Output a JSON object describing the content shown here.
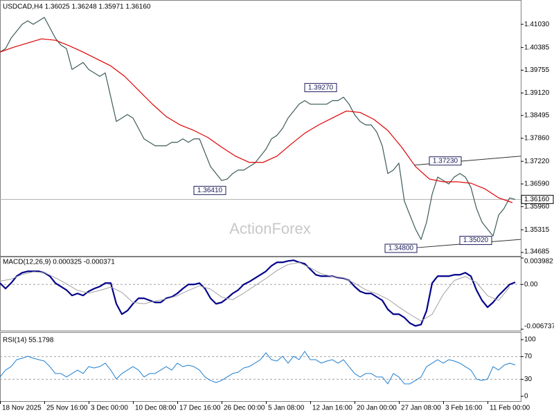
{
  "chart_data": [
    {
      "type": "line",
      "title": "USDCAD,H4  1.36025 1.36248 1.35971 1.36160",
      "watermark": "ActionForex",
      "xlim": [
        0,
        94
      ],
      "ylim": [
        1.34608,
        1.41706
      ],
      "grid": false,
      "yticks": [
        {
          "value": 1.4103,
          "label": "1.41030"
        },
        {
          "value": 1.40385,
          "label": "1.40385"
        },
        {
          "value": 1.39755,
          "label": "1.39755"
        },
        {
          "value": 1.3912,
          "label": "1.39120"
        },
        {
          "value": 1.38495,
          "label": "1.38495"
        },
        {
          "value": 1.3786,
          "label": "1.37860"
        },
        {
          "value": 1.3722,
          "label": "1.37220"
        },
        {
          "value": 1.3659,
          "label": "1.36590"
        },
        {
          "value": 1.3596,
          "label": "1.35960"
        },
        {
          "value": 1.35315,
          "label": "1.35315"
        },
        {
          "value": 1.34685,
          "label": "1.34685"
        }
      ],
      "series": [
        {
          "color": "#3c5a5a",
          "values": [
            1.40258,
            1.40355,
            1.40644,
            1.40837,
            1.4103,
            1.41127,
            1.4103,
            1.41127,
            1.41223,
            1.40934,
            1.40644,
            1.40451,
            1.40355,
            1.39775,
            1.39872,
            1.39969,
            1.39775,
            1.39679,
            1.39582,
            1.39679,
            1.39003,
            1.38328,
            1.38424,
            1.38521,
            1.38424,
            1.38135,
            1.37845,
            1.37748,
            1.37652,
            1.37652,
            1.37652,
            1.37748,
            1.37748,
            1.37845,
            1.37748,
            1.37845,
            1.37845,
            1.37459,
            1.37073,
            1.3688,
            1.36687,
            1.36725,
            1.3688,
            1.36976,
            1.36976,
            1.37073,
            1.37169,
            1.37362,
            1.37555,
            1.37845,
            1.37942,
            1.38135,
            1.38424,
            1.38617,
            1.3881,
            1.38907,
            1.3881,
            1.3881,
            1.3881,
            1.3881,
            1.38907,
            1.38907,
            1.39003,
            1.3881,
            1.38521,
            1.38328,
            1.38231,
            1.38231,
            1.38038,
            1.37652,
            1.3688,
            1.36976,
            1.37169,
            1.36108,
            1.35721,
            1.35335,
            1.35046,
            1.35528,
            1.36301,
            1.36783,
            1.36687,
            1.3659,
            1.36783,
            1.3688,
            1.36783,
            1.36494,
            1.35914,
            1.35528,
            1.35335,
            1.35142,
            1.35721,
            1.35914,
            1.36204,
            1.3616
          ]
        },
        {
          "color": "#e00000",
          "x": [
            0,
            2.5,
            5,
            7.5,
            10,
            12.5,
            15,
            17.5,
            20,
            22.5,
            25,
            27.5,
            30,
            32.5,
            35,
            37.5,
            40,
            42.5,
            45,
            47.5,
            50,
            52.5,
            55,
            57.5,
            60,
            62.5,
            65,
            67.5,
            70,
            72.5,
            75,
            77.5,
            80,
            82.5,
            85,
            87.5,
            90,
            92.5
          ],
          "values": [
            1.40258,
            1.40394,
            1.40509,
            1.40625,
            1.40587,
            1.40432,
            1.40258,
            1.40065,
            1.39872,
            1.39583,
            1.39197,
            1.38811,
            1.38464,
            1.38232,
            1.38078,
            1.37885,
            1.37614,
            1.37364,
            1.3719,
            1.3719,
            1.37364,
            1.37692,
            1.38,
            1.38232,
            1.38425,
            1.38618,
            1.38579,
            1.38386,
            1.38078,
            1.37614,
            1.37074,
            1.36727,
            1.3665,
            1.3665,
            1.36611,
            1.36456,
            1.36205,
            1.3607
          ]
        }
      ],
      "annotations": [
        {
          "x": 61,
          "value": 1.3927,
          "label": "1.39270"
        },
        {
          "x": 41,
          "value": 1.3641,
          "label": "1.36410"
        },
        {
          "x": 75.5,
          "value": 1.348,
          "label": "1.34800"
        },
        {
          "x": 89,
          "value": 1.3502,
          "label": "1.35020"
        },
        {
          "x": 83.5,
          "value": 1.3723,
          "label": "1.37230"
        }
      ],
      "trendlines": [
        {
          "x": [
            74.75,
            94
          ],
          "values": [
            1.37113,
            1.37364
          ]
        },
        {
          "x": [
            75,
            94
          ],
          "values": [
            1.34816,
            1.35048
          ]
        }
      ],
      "last_price": {
        "value": 1.3616,
        "label": "1.36160"
      }
    },
    {
      "type": "line",
      "title": "MACD(12,26,9) 0.000325 -0.000371",
      "xlim": [
        0,
        94
      ],
      "ylim": [
        -0.006737,
        0.003982
      ],
      "grid": true,
      "yticks": [
        0.003982,
        {
          "value": 0,
          "label": "0.00"
        },
        -0.006737
      ],
      "series": [
        {
          "color": "#00008b",
          "line_width": 2.2,
          "values": [
            0.000208,
            -0.000624,
            0.000208,
            0.001248,
            0.001768,
            0.001976,
            0.001976,
            0.001976,
            0.001768,
            0.001248,
            0.000208,
            -0.000312,
            -0.000832,
            -0.001664,
            -0.001352,
            -0.001664,
            -0.00104,
            -0.000624,
            -0.000312,
            0.000208,
            0.000208,
            -0.002912,
            -0.004472,
            -0.003952,
            -0.002912,
            -0.00208,
            -0.00208,
            -0.002392,
            -0.002704,
            -0.002704,
            -0.00208,
            -0.001872,
            -0.001352,
            -0.000624,
            0,
            0,
            0.000208,
            -0.000624,
            -0.00208,
            -0.002912,
            -0.002704,
            -0.00208,
            -0.001352,
            -0.000832,
            0,
            0.000416,
            0.000936,
            0.001456,
            0.001976,
            0.002808,
            0.003328,
            0.003328,
            0.003536,
            0.00364,
            0.003328,
            0.00312,
            0.002288,
            0.001456,
            0.001248,
            0.001248,
            0.001248,
            0.00104,
            0.000936,
            0.000624,
            -0.000312,
            -0.00104,
            -0.001352,
            -0.001352,
            -0.001872,
            -0.002392,
            -0.003744,
            -0.004472,
            -0.004472,
            -0.004992,
            -0.005824,
            -0.00624,
            -0.006032,
            -0.003952,
            0.000208,
            0.001248,
            0.001248,
            0.001248,
            0.001456,
            0.001456,
            0.001768,
            0.001248,
            -0.000832,
            -0.002392,
            -0.003432,
            -0.002704,
            -0.001664,
            -0.000832,
            0,
            0.000325
          ]
        },
        {
          "color": "#a0a0a0",
          "line_width": 1,
          "x": [
            0,
            2,
            4,
            6,
            8,
            10,
            12,
            14,
            16,
            18,
            20,
            22,
            24,
            26,
            28,
            30,
            32,
            34,
            36,
            38,
            40,
            42,
            44,
            46,
            48,
            50,
            52,
            54,
            56,
            58,
            60,
            62,
            64,
            66,
            68,
            70,
            72,
            74,
            76,
            78,
            80,
            82,
            84,
            86,
            88,
            90,
            92
          ],
          "values": [
            0.0005,
            0.0008,
            0.0015,
            0.0019,
            0.0018,
            0.001,
            0.0001,
            -0.0009,
            -0.0013,
            -0.0009,
            -0.0004,
            -0.0012,
            -0.0027,
            -0.0029,
            -0.0025,
            -0.0022,
            -0.0017,
            -0.0009,
            -0.0002,
            -0.0007,
            -0.0019,
            -0.0023,
            -0.0013,
            -0.0002,
            0.0009,
            0.0021,
            0.003,
            0.0033,
            0.0025,
            0.0016,
            0.0012,
            0.001,
            0.0002,
            -0.0008,
            -0.0014,
            -0.0022,
            -0.0034,
            -0.0045,
            -0.0055,
            -0.0045,
            -0.0015,
            0.0006,
            0.0012,
            0.0003,
            -0.0017,
            -0.0024,
            -0.000371
          ]
        }
      ]
    },
    {
      "type": "line",
      "title": "RSI(14) 55.1798",
      "xlim": [
        0,
        94
      ],
      "ylim": [
        0,
        100
      ],
      "grid": true,
      "yticks": [
        100,
        70,
        30,
        0
      ],
      "xticks": [
        {
          "value": 0,
          "label": "18 Nov 2025"
        },
        {
          "value": 8,
          "label": "25 Nov 16:00"
        },
        {
          "value": 16,
          "label": "3 Dec 00:00"
        },
        {
          "value": 24,
          "label": "10 Dec 08:00"
        },
        {
          "value": 32,
          "label": "17 Dec 16:00"
        },
        {
          "value": 40,
          "label": "26 Dec 00:00"
        },
        {
          "value": 48,
          "label": "5 Jan 08:00"
        },
        {
          "value": 56,
          "label": "12 Jan 16:00"
        },
        {
          "value": 64,
          "label": "20 Jan 00:00"
        },
        {
          "value": 72,
          "label": "27 Jan 08:00"
        },
        {
          "value": 80,
          "label": "3 Feb 16:00"
        },
        {
          "value": 88,
          "label": "11 Feb 00:00"
        }
      ],
      "series": [
        {
          "color": "#1e7fd0",
          "line_width": 1,
          "values": [
            34.1,
            46.3,
            52.4,
            64.6,
            67.1,
            70.7,
            67.1,
            64.6,
            62.2,
            52.4,
            40.2,
            40.2,
            34.1,
            40.2,
            46.3,
            40.2,
            52.4,
            50,
            52.4,
            58.5,
            46.3,
            30.5,
            40.2,
            46.3,
            52.4,
            46.3,
            34.1,
            40.2,
            40.2,
            46.3,
            52.4,
            46.3,
            58.5,
            52.4,
            54.9,
            52.4,
            46.3,
            34.1,
            28,
            24.4,
            28,
            34.1,
            40.2,
            42.7,
            50,
            52.4,
            58.5,
            64.6,
            76.8,
            64.6,
            62.2,
            70.7,
            58.5,
            70.7,
            64.6,
            79.3,
            64.6,
            64.6,
            58.5,
            62.2,
            64.6,
            58.5,
            64.6,
            52.4,
            40.2,
            34.1,
            40.2,
            40.2,
            34.1,
            34.1,
            22,
            40.2,
            34.1,
            22,
            22,
            28,
            34.1,
            52.4,
            58.5,
            64.6,
            58.5,
            64.6,
            62.2,
            58.5,
            52.4,
            46.3,
            30.5,
            28,
            30.5,
            52.4,
            46.3,
            54.9,
            58.5,
            55.1798
          ]
        }
      ]
    }
  ]
}
